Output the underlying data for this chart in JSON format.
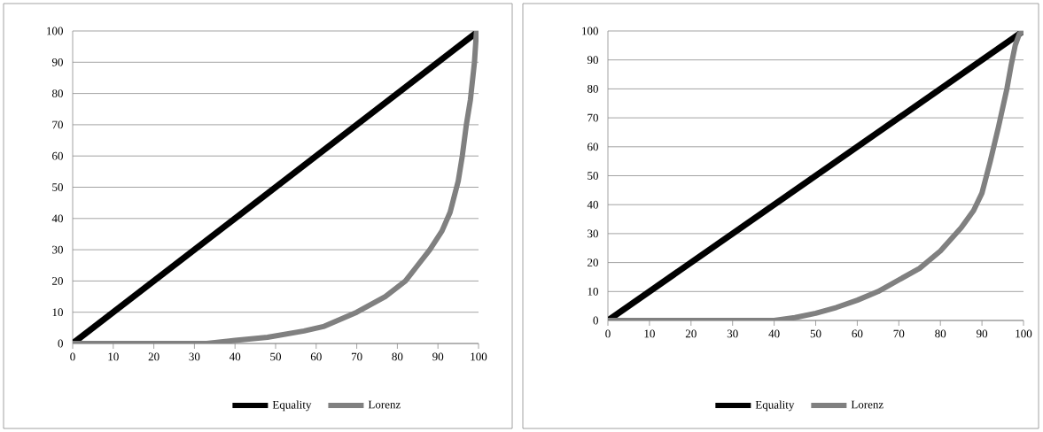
{
  "chart_data": [
    {
      "type": "line",
      "xlim": [
        0,
        100
      ],
      "ylim": [
        0,
        100
      ],
      "xticks": [
        0,
        10,
        20,
        30,
        40,
        50,
        60,
        70,
        80,
        90,
        100
      ],
      "yticks": [
        0,
        10,
        20,
        30,
        40,
        50,
        60,
        70,
        80,
        90,
        100
      ],
      "grid": "y",
      "legend": "bottom",
      "marker": "none",
      "line_style": "solid",
      "series": [
        {
          "name": "Equality",
          "color": "#000000",
          "x": [
            0,
            100
          ],
          "values": [
            0,
            100
          ]
        },
        {
          "name": "Lorenz",
          "color": "#808080",
          "x": [
            0,
            10,
            20,
            33,
            40,
            48,
            57,
            62,
            70,
            77,
            82,
            85,
            88,
            91,
            93,
            95,
            96,
            97,
            98,
            99,
            99.5,
            100
          ],
          "values": [
            0,
            0,
            0,
            0,
            1,
            2,
            4,
            5.5,
            10,
            15,
            20,
            25,
            30,
            36,
            42,
            52,
            60,
            70,
            78,
            90,
            100,
            100
          ]
        }
      ]
    },
    {
      "type": "line",
      "xlim": [
        0,
        100
      ],
      "ylim": [
        0,
        100
      ],
      "xticks": [
        0,
        10,
        20,
        30,
        40,
        50,
        60,
        70,
        80,
        90,
        100
      ],
      "yticks": [
        0,
        10,
        20,
        30,
        40,
        50,
        60,
        70,
        80,
        90,
        100
      ],
      "grid": "y",
      "legend": "bottom",
      "marker": "none",
      "line_style": "solid",
      "series": [
        {
          "name": "Equality",
          "color": "#000000",
          "x": [
            0,
            100
          ],
          "values": [
            0,
            100
          ]
        },
        {
          "name": "Lorenz",
          "color": "#808080",
          "x": [
            0,
            10,
            20,
            30,
            40,
            45,
            50,
            55,
            60,
            65,
            70,
            75,
            80,
            85,
            88,
            90,
            92,
            94,
            96,
            97,
            98,
            99,
            100
          ],
          "values": [
            0,
            0,
            0,
            0,
            0,
            1,
            2.5,
            4.5,
            7,
            10,
            14,
            18,
            24,
            32,
            38,
            44,
            55,
            67,
            80,
            88,
            95,
            99,
            100
          ]
        }
      ]
    }
  ]
}
